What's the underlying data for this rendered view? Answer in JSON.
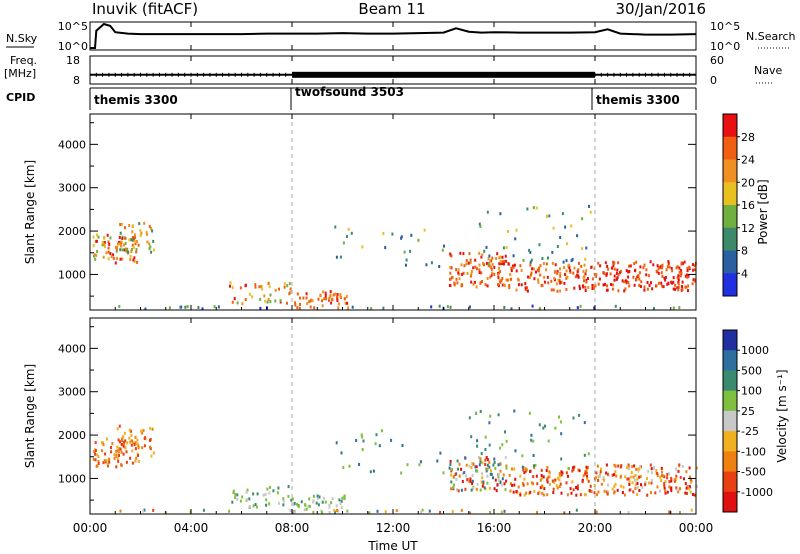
{
  "header": {
    "station": "Inuvik (fitACF)",
    "beam": "Beam 11",
    "date": "30/Jan/2016"
  },
  "chart_data": [
    {
      "id": "nsky",
      "type": "line",
      "ylabel": "N.Sky",
      "ticks": [
        "10^5",
        "10^0"
      ],
      "right_label": "N.Search",
      "right_ticks": [
        "10^5",
        "10^0"
      ],
      "x": [
        0.0,
        0.2,
        0.25,
        0.55,
        0.8,
        1.0,
        1.5,
        2,
        3,
        4,
        5,
        6,
        7,
        8,
        9,
        10,
        11,
        12,
        13,
        14,
        14.5,
        15,
        15.5,
        16,
        17,
        18,
        19,
        20,
        20.5,
        21,
        22,
        23,
        24
      ],
      "values": [
        0,
        0,
        3.6,
        5.0,
        4.6,
        3.3,
        3.0,
        2.9,
        2.9,
        2.9,
        2.9,
        2.9,
        3.0,
        3.0,
        3.0,
        3.1,
        3.0,
        3.0,
        3.1,
        3.2,
        4.1,
        3.4,
        3.2,
        3.3,
        3.2,
        3.2,
        3.2,
        3.3,
        3.9,
        3.0,
        2.8,
        2.8,
        2.9
      ]
    },
    {
      "id": "freq",
      "type": "line",
      "ylabel": "Freq.",
      "units": "[MHz]",
      "ticks": [
        "18",
        "8"
      ],
      "right_label": "Nave",
      "right_ticks": [
        "60",
        "0"
      ],
      "segments": [
        {
          "start": 0,
          "end": 8,
          "freq": 11
        },
        {
          "start": 8,
          "end": 20,
          "freq": 11,
          "alternating": true
        },
        {
          "start": 20,
          "end": 24,
          "freq": 11
        }
      ]
    },
    {
      "id": "cpid",
      "type": "table",
      "label": "CPID",
      "entries": [
        {
          "name": "themis 3300",
          "start": 0,
          "end": 8
        },
        {
          "name": "twofsound 3503",
          "start": 8,
          "end": 20
        },
        {
          "name": "themis 3300",
          "start": 20,
          "end": 24
        }
      ]
    },
    {
      "id": "power",
      "type": "heatmap",
      "ylabel": "Slant Range [km]",
      "yticks": [
        1000,
        2000,
        3000,
        4000
      ],
      "ylim": [
        180,
        4700
      ],
      "colorbar_label": "Power [dB]",
      "colorbar_ticks": [
        "4",
        "8",
        "12",
        "16",
        "20",
        "24",
        "28"
      ]
    },
    {
      "id": "velocity",
      "type": "heatmap",
      "ylabel": "Slant Range [km]",
      "yticks": [
        1000,
        2000,
        3000,
        4000
      ],
      "ylim": [
        180,
        4700
      ],
      "colorbar_label": "Velocity [m s⁻¹]",
      "colorbar_ticks": [
        "1000",
        "500",
        "100",
        "25",
        "-25",
        "-100",
        "-500",
        "-1000"
      ]
    }
  ],
  "xaxis": {
    "label": "Time UT",
    "ticks": [
      "00:00",
      "04:00",
      "08:00",
      "12:00",
      "16:00",
      "20:00",
      "00:00"
    ],
    "tick_hours": [
      0,
      4,
      8,
      12,
      16,
      20,
      24
    ]
  },
  "colors": {
    "power_scale": [
      "#2030e0",
      "#2a5fa0",
      "#3c8a6a",
      "#70b040",
      "#e8c020",
      "#f09020",
      "#f06010",
      "#e81010"
    ],
    "velocity_scale": [
      "#2030a0",
      "#2f6fa0",
      "#3a8a70",
      "#80c040",
      "#c8c8c8",
      "#f0b020",
      "#f08010",
      "#e84010",
      "#e01010"
    ]
  }
}
